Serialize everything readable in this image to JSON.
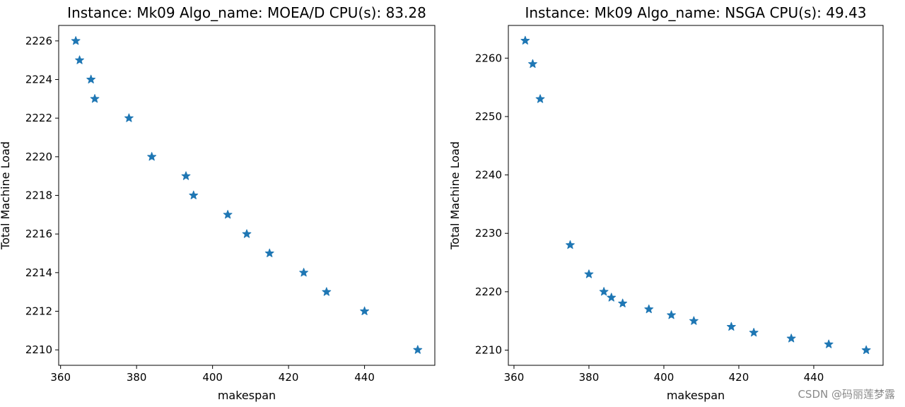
{
  "chart_data": [
    {
      "type": "scatter",
      "marker": "star",
      "color": "#1f77b4",
      "title": "Instance: Mk09 Algo_name: MOEA/D CPU(s): 83.28",
      "xlabel": "makespan",
      "ylabel": "Total Machine Load",
      "xlim": [
        359.5,
        458.5
      ],
      "ylim": [
        2209.2,
        2226.8
      ],
      "xticks": [
        360,
        380,
        400,
        420,
        440
      ],
      "yticks": [
        2210,
        2212,
        2214,
        2216,
        2218,
        2220,
        2222,
        2224,
        2226
      ],
      "x": [
        364,
        365,
        368,
        369,
        378,
        384,
        393,
        395,
        404,
        409,
        415,
        424,
        430,
        440,
        454
      ],
      "y": [
        2226,
        2225,
        2224,
        2223,
        2222,
        2220,
        2219,
        2218,
        2217,
        2216,
        2215,
        2214,
        2213,
        2212,
        2210
      ]
    },
    {
      "type": "scatter",
      "marker": "star",
      "color": "#1f77b4",
      "title": "Instance: Mk09 Algo_name: NSGA CPU(s): 49.43",
      "xlabel": "makespan",
      "ylabel": "Total Machine Load",
      "xlim": [
        358.5,
        458.5
      ],
      "ylim": [
        2207.4,
        2265.6
      ],
      "xticks": [
        360,
        380,
        400,
        420,
        440
      ],
      "yticks": [
        2210,
        2220,
        2230,
        2240,
        2250,
        2260
      ],
      "x": [
        363,
        365,
        367,
        375,
        380,
        384,
        386,
        389,
        396,
        402,
        408,
        418,
        424,
        434,
        444,
        454
      ],
      "y": [
        2263,
        2259,
        2253,
        2228,
        2223,
        2220,
        2219,
        2218,
        2217,
        2216,
        2215,
        2214,
        2213,
        2212,
        2211,
        2210
      ]
    }
  ],
  "watermark": "CSDN @码丽莲梦露"
}
